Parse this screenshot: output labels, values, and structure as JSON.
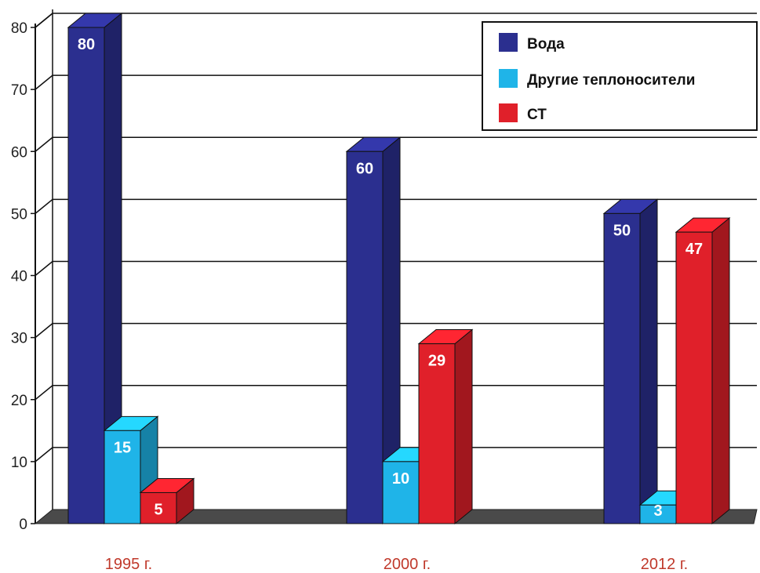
{
  "chart_data": {
    "type": "bar",
    "categories": [
      "1995 г.",
      "2000 г.",
      "2012 г."
    ],
    "series": [
      {
        "name": "Вода",
        "values": [
          80,
          60,
          50
        ],
        "color": "#2b2f8f"
      },
      {
        "name": "Другие теплоносители",
        "values": [
          15,
          10,
          3
        ],
        "color": "#1fb4e8"
      },
      {
        "name": "СТ",
        "values": [
          5,
          29,
          47
        ],
        "color": "#e0202a"
      }
    ],
    "data_labels": [
      [
        "80",
        "15",
        "5"
      ],
      [
        "60",
        "10",
        "29"
      ],
      [
        "50",
        "3",
        "47"
      ]
    ],
    "yticks": [
      "0",
      "10",
      "20",
      "30",
      "40",
      "50",
      "60",
      "70",
      "80"
    ],
    "ylim": [
      0,
      80
    ],
    "grid": true,
    "legend_position": "top-right",
    "style": "3d"
  }
}
